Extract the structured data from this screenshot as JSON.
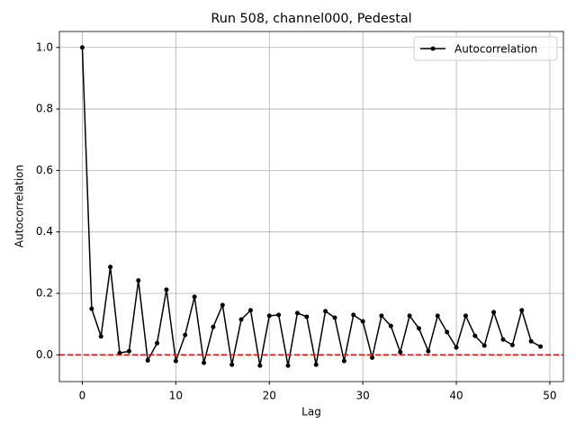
{
  "chart_data": {
    "type": "line",
    "title": "Run 508, channel000, Pedestal",
    "xlabel": "Lag",
    "ylabel": "Autocorrelation",
    "x": [
      0,
      1,
      2,
      3,
      4,
      5,
      6,
      7,
      8,
      9,
      10,
      11,
      12,
      13,
      14,
      15,
      16,
      17,
      18,
      19,
      20,
      21,
      22,
      23,
      24,
      25,
      26,
      27,
      28,
      29,
      30,
      31,
      32,
      33,
      34,
      35,
      36,
      37,
      38,
      39,
      40,
      41,
      42,
      43,
      44,
      45,
      46,
      47,
      48,
      49
    ],
    "series": [
      {
        "name": "Autocorrelation",
        "color": "#000000",
        "values": [
          1.0,
          0.15,
          0.06,
          0.286,
          0.006,
          0.012,
          0.242,
          -0.018,
          0.038,
          0.212,
          -0.02,
          0.065,
          0.189,
          -0.026,
          0.091,
          0.162,
          -0.032,
          0.115,
          0.145,
          -0.035,
          0.127,
          0.13,
          -0.035,
          0.136,
          0.124,
          -0.032,
          0.142,
          0.121,
          -0.02,
          0.13,
          0.109,
          -0.009,
          0.127,
          0.094,
          0.009,
          0.127,
          0.086,
          0.012,
          0.127,
          0.074,
          0.024,
          0.127,
          0.062,
          0.03,
          0.139,
          0.05,
          0.032,
          0.145,
          0.044,
          0.027
        ]
      }
    ],
    "hline": {
      "value": 0,
      "color": "#ff0000"
    },
    "xlim": [
      -2.45,
      51.45
    ],
    "ylim": [
      -0.087,
      1.052
    ],
    "xticks": [
      0,
      10,
      20,
      30,
      40,
      50
    ],
    "yticks": [
      {
        "value": 0,
        "label": "0.0"
      },
      {
        "value": 0.2,
        "label": "0.2"
      },
      {
        "value": 0.4,
        "label": "0.4"
      },
      {
        "value": 0.6,
        "label": "0.6"
      },
      {
        "value": 0.8,
        "label": "0.8"
      },
      {
        "value": 1.0,
        "label": "1.0"
      }
    ],
    "grid": true,
    "legend": "upper right"
  }
}
